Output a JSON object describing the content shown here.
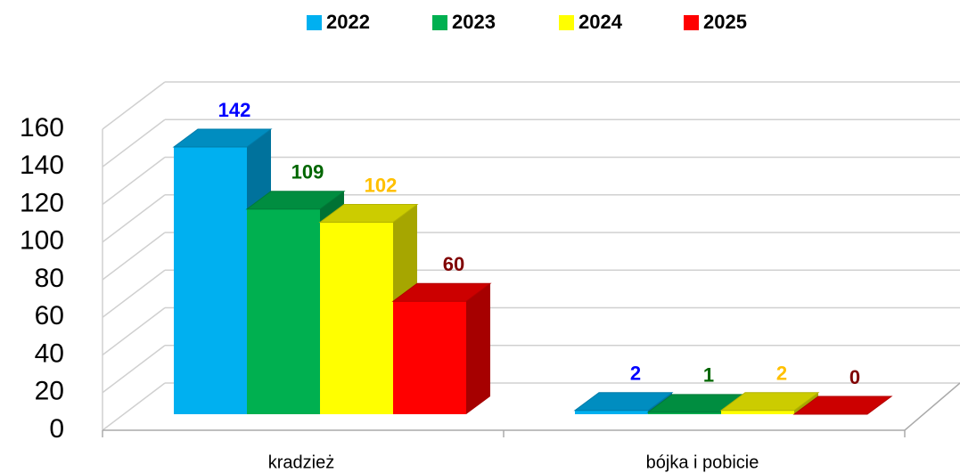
{
  "chart_data": {
    "type": "bar3d",
    "categories": [
      "kradzież",
      "bójka i pobicie"
    ],
    "series": [
      {
        "name": "2022",
        "color": "#00b0f0",
        "label_color": "#0000ff",
        "values": [
          142,
          2
        ]
      },
      {
        "name": "2023",
        "color": "#00b050",
        "label_color": "#006600",
        "values": [
          109,
          1
        ]
      },
      {
        "name": "2024",
        "color": "#ffff00",
        "label_color": "#ffc000",
        "values": [
          102,
          2
        ]
      },
      {
        "name": "2025",
        "color": "#ff0000",
        "label_color": "#800000",
        "values": [
          60,
          0
        ]
      }
    ],
    "ylim": [
      0,
      160
    ],
    "yticks": [
      0,
      20,
      40,
      60,
      80,
      100,
      120,
      140,
      160
    ],
    "grid": true,
    "legend": "top"
  }
}
